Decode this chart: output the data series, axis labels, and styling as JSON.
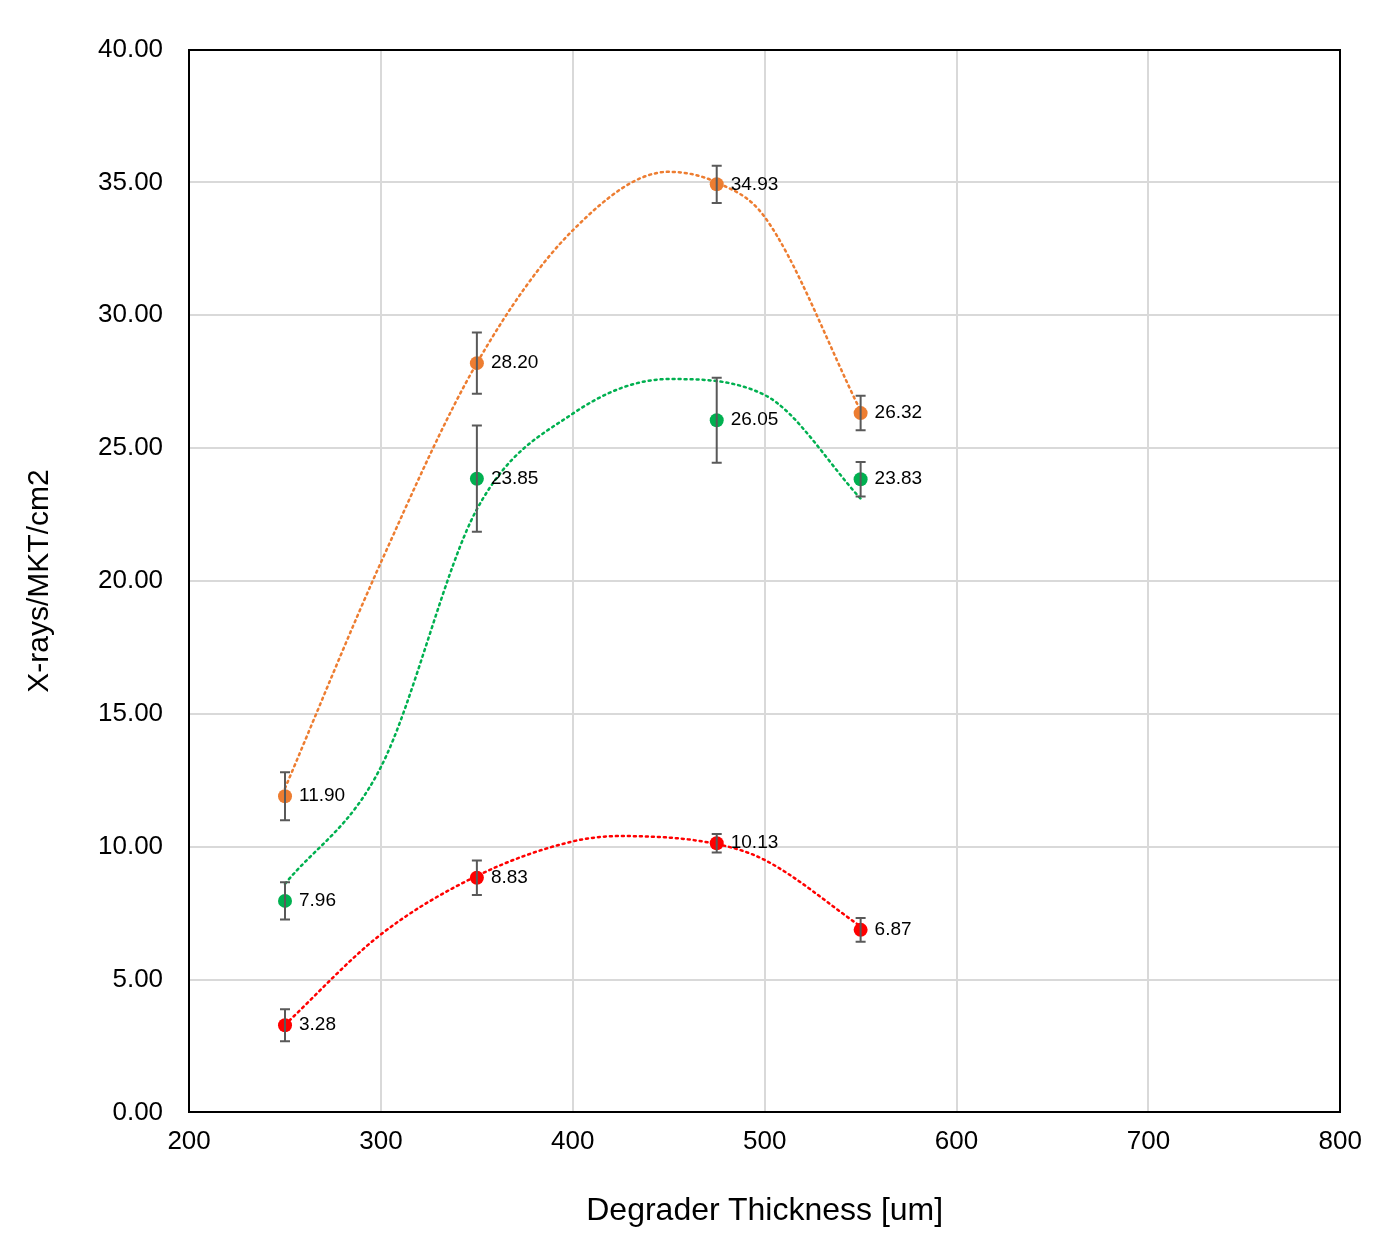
{
  "chart_data": {
    "type": "scatter",
    "xlabel": "Degrader Thickness [um]",
    "ylabel": "X-rays/MKT/cm2",
    "xlim": [
      200,
      800
    ],
    "xticks": [
      200,
      300,
      400,
      500,
      600,
      700,
      800
    ],
    "ylim": [
      0,
      40
    ],
    "yticks": [
      {
        "value": 0,
        "label": "0.00"
      },
      {
        "value": 5,
        "label": "5.00"
      },
      {
        "value": 10,
        "label": "10.00"
      },
      {
        "value": 15,
        "label": "15.00"
      },
      {
        "value": 20,
        "label": "20.00"
      },
      {
        "value": 25,
        "label": "25.00"
      },
      {
        "value": 30,
        "label": "30.00"
      },
      {
        "value": 35,
        "label": "35.00"
      },
      {
        "value": 40,
        "label": "40.00"
      }
    ],
    "grid": true,
    "legend": false,
    "series": [
      {
        "type": "line",
        "color": "#ed7d31",
        "line_style": "dotted",
        "marker": "none",
        "x": [
          250,
          300,
          350,
          400,
          450,
          475,
          500,
          550
        ],
        "values": [
          12.2,
          20.7,
          28.2,
          33.2,
          35.4,
          35.0,
          33.7,
          26.4
        ]
      },
      {
        "type": "line",
        "color": "#00b050",
        "line_style": "dotted",
        "marker": "none",
        "x": [
          250,
          300,
          350,
          400,
          450,
          500,
          550
        ],
        "values": [
          8.6,
          13.0,
          22.7,
          26.3,
          27.6,
          27.0,
          23.1
        ]
      },
      {
        "type": "line",
        "color": "#ff0000",
        "line_style": "dotted",
        "marker": "none",
        "x": [
          250,
          300,
          350,
          400,
          425,
          475,
          500,
          550
        ],
        "values": [
          3.3,
          6.7,
          8.9,
          10.2,
          10.4,
          10.1,
          9.5,
          7.0
        ]
      },
      {
        "type": "scatter",
        "color": "#ed7d31",
        "marker": "circle",
        "x": [
          250,
          350,
          475,
          550
        ],
        "values": [
          11.9,
          28.2,
          34.93,
          26.32
        ],
        "errors": [
          0.9,
          1.15,
          0.7,
          0.65
        ],
        "value_labels": [
          "11.90",
          "28.20",
          "34.93",
          "26.32"
        ]
      },
      {
        "type": "scatter",
        "color": "#00b050",
        "marker": "circle",
        "x": [
          250,
          350,
          475,
          550
        ],
        "values": [
          7.96,
          23.85,
          26.05,
          23.83
        ],
        "errors": [
          0.7,
          2.0,
          1.6,
          0.65
        ],
        "value_labels": [
          "7.96",
          "23.85",
          "26.05",
          "23.83"
        ]
      },
      {
        "type": "scatter",
        "color": "#ff0000",
        "marker": "circle",
        "x": [
          250,
          350,
          475,
          550
        ],
        "values": [
          3.28,
          8.83,
          10.13,
          6.87
        ],
        "errors": [
          0.6,
          0.65,
          0.35,
          0.45
        ],
        "value_labels": [
          "3.28",
          "8.83",
          "10.13",
          "6.87"
        ]
      }
    ]
  }
}
